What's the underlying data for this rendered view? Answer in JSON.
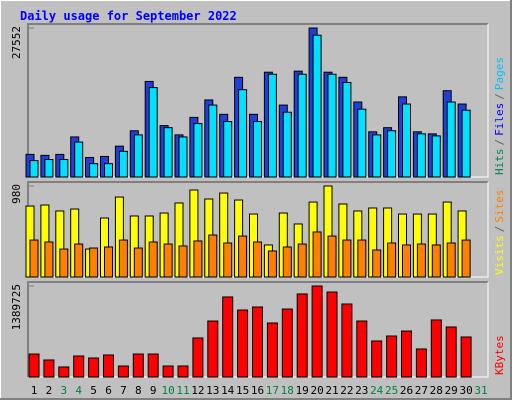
{
  "chart_data": {
    "type": "bar",
    "title": "Daily usage for September 2022",
    "categories": [
      "1",
      "2",
      "3",
      "4",
      "5",
      "6",
      "7",
      "8",
      "9",
      "10",
      "11",
      "12",
      "13",
      "14",
      "15",
      "16",
      "17",
      "18",
      "19",
      "20",
      "21",
      "22",
      "23",
      "24",
      "25",
      "26",
      "27",
      "28",
      "29",
      "30",
      "31"
    ],
    "category_colors": [
      "#000000",
      "#000000",
      "#008040",
      "#008040",
      "#000000",
      "#000000",
      "#000000",
      "#000000",
      "#000000",
      "#008040",
      "#008040",
      "#000000",
      "#000000",
      "#000000",
      "#000000",
      "#000000",
      "#008040",
      "#008040",
      "#000000",
      "#000000",
      "#000000",
      "#000000",
      "#000000",
      "#008040",
      "#008040",
      "#000000",
      "#000000",
      "#000000",
      "#000000",
      "#000000",
      "#008040"
    ],
    "legend_separator": "/",
    "panels": [
      {
        "ylim": [
          0,
          27552
        ],
        "yticks": [
          27552
        ],
        "legend": [
          {
            "name": "Pages",
            "color": "#00C0FF"
          },
          {
            "name": "Files",
            "color": "#0000FF"
          },
          {
            "name": "Hits",
            "color": "#00805C"
          }
        ],
        "series": [
          {
            "name": "Files",
            "color": "#2040D8",
            "values": [
              4180,
              4000,
              4180,
              7410,
              3610,
              3800,
              5700,
              8550,
              17670,
              9500,
              7790,
              11020,
              14250,
              11590,
              18430,
              11590,
              19380,
              13300,
              19570,
              27552,
              19380,
              18430,
              13870,
              8360,
              9120,
              14820,
              8360,
              7980,
              15960,
              13490,
              null
            ]
          },
          {
            "name": "Pages",
            "color": "#00E0FF",
            "values": [
              3040,
              3230,
              3230,
              6460,
              2470,
              2470,
              4750,
              7790,
              16530,
              9120,
              7410,
              9880,
              13300,
              10260,
              16150,
              10260,
              19000,
              11970,
              19000,
              26220,
              19000,
              17480,
              12540,
              7790,
              8550,
              13490,
              7980,
              7600,
              13870,
              12350,
              null
            ]
          }
        ]
      },
      {
        "ylim": [
          0,
          980
        ],
        "yticks": [
          980
        ],
        "legend": [
          {
            "name": "Sites",
            "color": "#FF8000"
          },
          {
            "name": "Visits",
            "color": "#FFFF00"
          }
        ],
        "series": [
          {
            "name": "Visits",
            "color": "#FFFF00",
            "values": [
              764,
              775,
              711,
              732,
              301,
              635,
              861,
              657,
              657,
              689,
              797,
              937,
              840,
              904,
              829,
              678,
              345,
              689,
              571,
              807,
              980,
              786,
              711,
              743,
              743,
              678,
              678,
              678,
              807,
              711,
              null
            ]
          },
          {
            "name": "Sites",
            "color": "#FF8000",
            "values": [
              398,
              377,
              301,
              355,
              312,
              323,
              398,
              312,
              377,
              355,
              334,
              388,
              452,
              366,
              441,
              377,
              280,
              323,
              355,
              485,
              441,
              398,
              398,
              291,
              366,
              345,
              355,
              345,
              366,
              398,
              null
            ]
          }
        ]
      },
      {
        "ylim": [
          0,
          1389725
        ],
        "yticks": [
          1389725
        ],
        "legend": [
          {
            "name": "KBytes",
            "color": "#FF0000"
          }
        ],
        "series": [
          {
            "name": "KBytes",
            "color": "#FF0000",
            "values": [
              351000,
              260000,
              153000,
              321000,
              290000,
              336000,
              168000,
              351000,
              351000,
              168000,
              168000,
              596000,
              855000,
              1222000,
              1023000,
              1069000,
              825000,
              1038000,
              1268000,
              1389725,
              1298000,
              1115000,
              855000,
              550000,
              626000,
              702000,
              428000,
              871000,
              764000,
              611000,
              null
            ]
          }
        ]
      }
    ]
  }
}
